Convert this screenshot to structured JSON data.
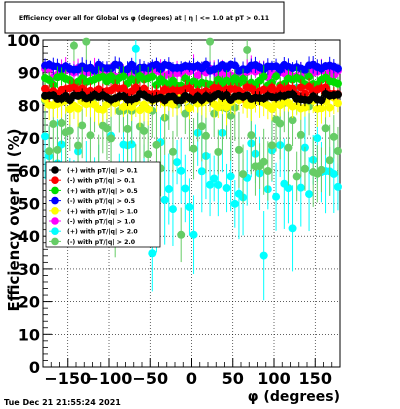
{
  "chart_data": {
    "type": "scatter",
    "title": "Efficiency over all for Global vs φ (degrees) at |  η  | <= 1.0 at pT > 0.11",
    "xlabel": "φ (degrees)",
    "ylabel": "Efficiency over all (%)",
    "xlim": [
      -180,
      180
    ],
    "ylim": [
      0,
      100
    ],
    "x_ticks": [
      "−150",
      "−100",
      "−50",
      "0",
      "50",
      "100",
      "150"
    ],
    "y_ticks": [
      "0",
      "10",
      "20",
      "30",
      "40",
      "50",
      "60",
      "70",
      "80",
      "90",
      "100"
    ],
    "grid": true,
    "legend_position": "center-left",
    "series": [
      {
        "name": "(+) with pT/|q| > 0.1",
        "color": "#000000",
        "level": 82.5,
        "spread": 1.0,
        "err": 1.5
      },
      {
        "name": "(-) with pT/|q| > 0.1",
        "color": "#ff0000",
        "level": 84.5,
        "spread": 1.2,
        "err": 2.0
      },
      {
        "name": "(+) with pT/|q| > 0.5",
        "color": "#00dd00",
        "level": 87.5,
        "spread": 1.5,
        "err": 2.5
      },
      {
        "name": "(-) with pT/|q| > 0.5",
        "color": "#0000ff",
        "level": 91.5,
        "spread": 1.0,
        "err": 2.0
      },
      {
        "name": "(+) with pT/|q| > 1.0",
        "color": "#ffff00",
        "level": 80.5,
        "spread": 2.0,
        "err": 4.0
      },
      {
        "name": "(-) with pT/|q| > 1.0",
        "color": "#ff00ff",
        "level": 90.0,
        "spread": 1.5,
        "err": 3.0
      },
      {
        "name": "(+) with pT/|q| > 2.0",
        "color": "#00ffff",
        "level": 60.0,
        "spread": 12.0,
        "err": 10.0
      },
      {
        "name": "(-) with pT/|q| > 2.0",
        "color": "#66cc66",
        "level": 70.0,
        "spread": 12.0,
        "err": 10.0
      }
    ]
  },
  "footer": {
    "timestamp": "Tue Dec 21 21:55:24 2021"
  }
}
